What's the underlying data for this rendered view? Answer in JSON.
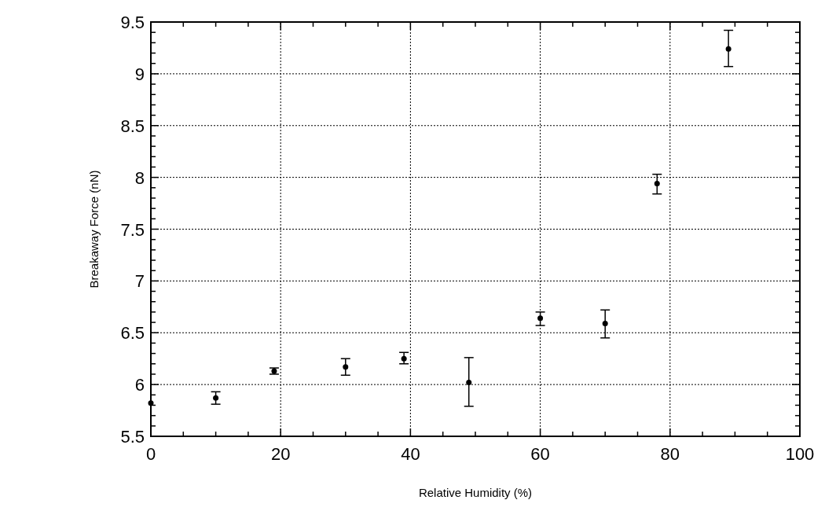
{
  "chart_data": {
    "type": "scatter",
    "xlabel": "Relative Humidity (%)",
    "ylabel": "Breakaway Force (nN)",
    "x": [
      0,
      10,
      19,
      30,
      39,
      49,
      60,
      70,
      78,
      89
    ],
    "values": [
      5.82,
      5.87,
      6.13,
      6.17,
      6.25,
      6.02,
      6.64,
      6.59,
      7.94,
      9.24
    ],
    "errors": [
      null,
      [
        5.81,
        5.93
      ],
      [
        6.1,
        6.16
      ],
      [
        6.09,
        6.25
      ],
      [
        6.2,
        6.31
      ],
      [
        5.79,
        6.26
      ],
      [
        6.57,
        6.7
      ],
      [
        6.45,
        6.72
      ],
      [
        7.84,
        8.03
      ],
      [
        9.07,
        9.42
      ]
    ],
    "color": "#000000",
    "marker": "circle",
    "grid": true,
    "xlim": [
      0,
      100
    ],
    "xticks": [
      0,
      {
        "value": 5,
        "label": null
      },
      {
        "value": 10,
        "label": null
      },
      {
        "value": 15,
        "label": null
      },
      20,
      {
        "value": 25,
        "label": null
      },
      {
        "value": 30,
        "label": null
      },
      {
        "value": 35,
        "label": null
      },
      40,
      {
        "value": 45,
        "label": null
      },
      {
        "value": 50,
        "label": null
      },
      {
        "value": 55,
        "label": null
      },
      60,
      {
        "value": 65,
        "label": null
      },
      {
        "value": 70,
        "label": null
      },
      {
        "value": 75,
        "label": null
      },
      80,
      {
        "value": 85,
        "label": null
      },
      {
        "value": 90,
        "label": null
      },
      {
        "value": 95,
        "label": null
      },
      100
    ],
    "ylim": [
      5.5,
      9.5
    ],
    "yticks": [
      5.5,
      {
        "value": 5.6,
        "label": null
      },
      {
        "value": 5.7,
        "label": null
      },
      {
        "value": 5.8,
        "label": null
      },
      {
        "value": 5.9,
        "label": null
      },
      6,
      {
        "value": 6.1,
        "label": null
      },
      {
        "value": 6.2,
        "label": null
      },
      {
        "value": 6.3,
        "label": null
      },
      {
        "value": 6.4,
        "label": null
      },
      6.5,
      {
        "value": 6.6,
        "label": null
      },
      {
        "value": 6.7,
        "label": null
      },
      {
        "value": 6.8,
        "label": null
      },
      {
        "value": 6.9,
        "label": null
      },
      7,
      {
        "value": 7.1,
        "label": null
      },
      {
        "value": 7.2,
        "label": null
      },
      {
        "value": 7.3,
        "label": null
      },
      {
        "value": 7.4,
        "label": null
      },
      7.5,
      {
        "value": 7.6,
        "label": null
      },
      {
        "value": 7.7,
        "label": null
      },
      {
        "value": 7.8,
        "label": null
      },
      {
        "value": 7.9,
        "label": null
      },
      8,
      {
        "value": 8.1,
        "label": null
      },
      {
        "value": 8.2,
        "label": null
      },
      {
        "value": 8.3,
        "label": null
      },
      {
        "value": 8.4,
        "label": null
      },
      8.5,
      {
        "value": 8.6,
        "label": null
      },
      {
        "value": 8.7,
        "label": null
      },
      {
        "value": 8.8,
        "label": null
      },
      {
        "value": 8.9,
        "label": null
      },
      9,
      {
        "value": 9.1,
        "label": null
      },
      {
        "value": 9.2,
        "label": null
      },
      {
        "value": 9.3,
        "label": null
      },
      {
        "value": 9.4,
        "label": null
      },
      9.5
    ]
  }
}
